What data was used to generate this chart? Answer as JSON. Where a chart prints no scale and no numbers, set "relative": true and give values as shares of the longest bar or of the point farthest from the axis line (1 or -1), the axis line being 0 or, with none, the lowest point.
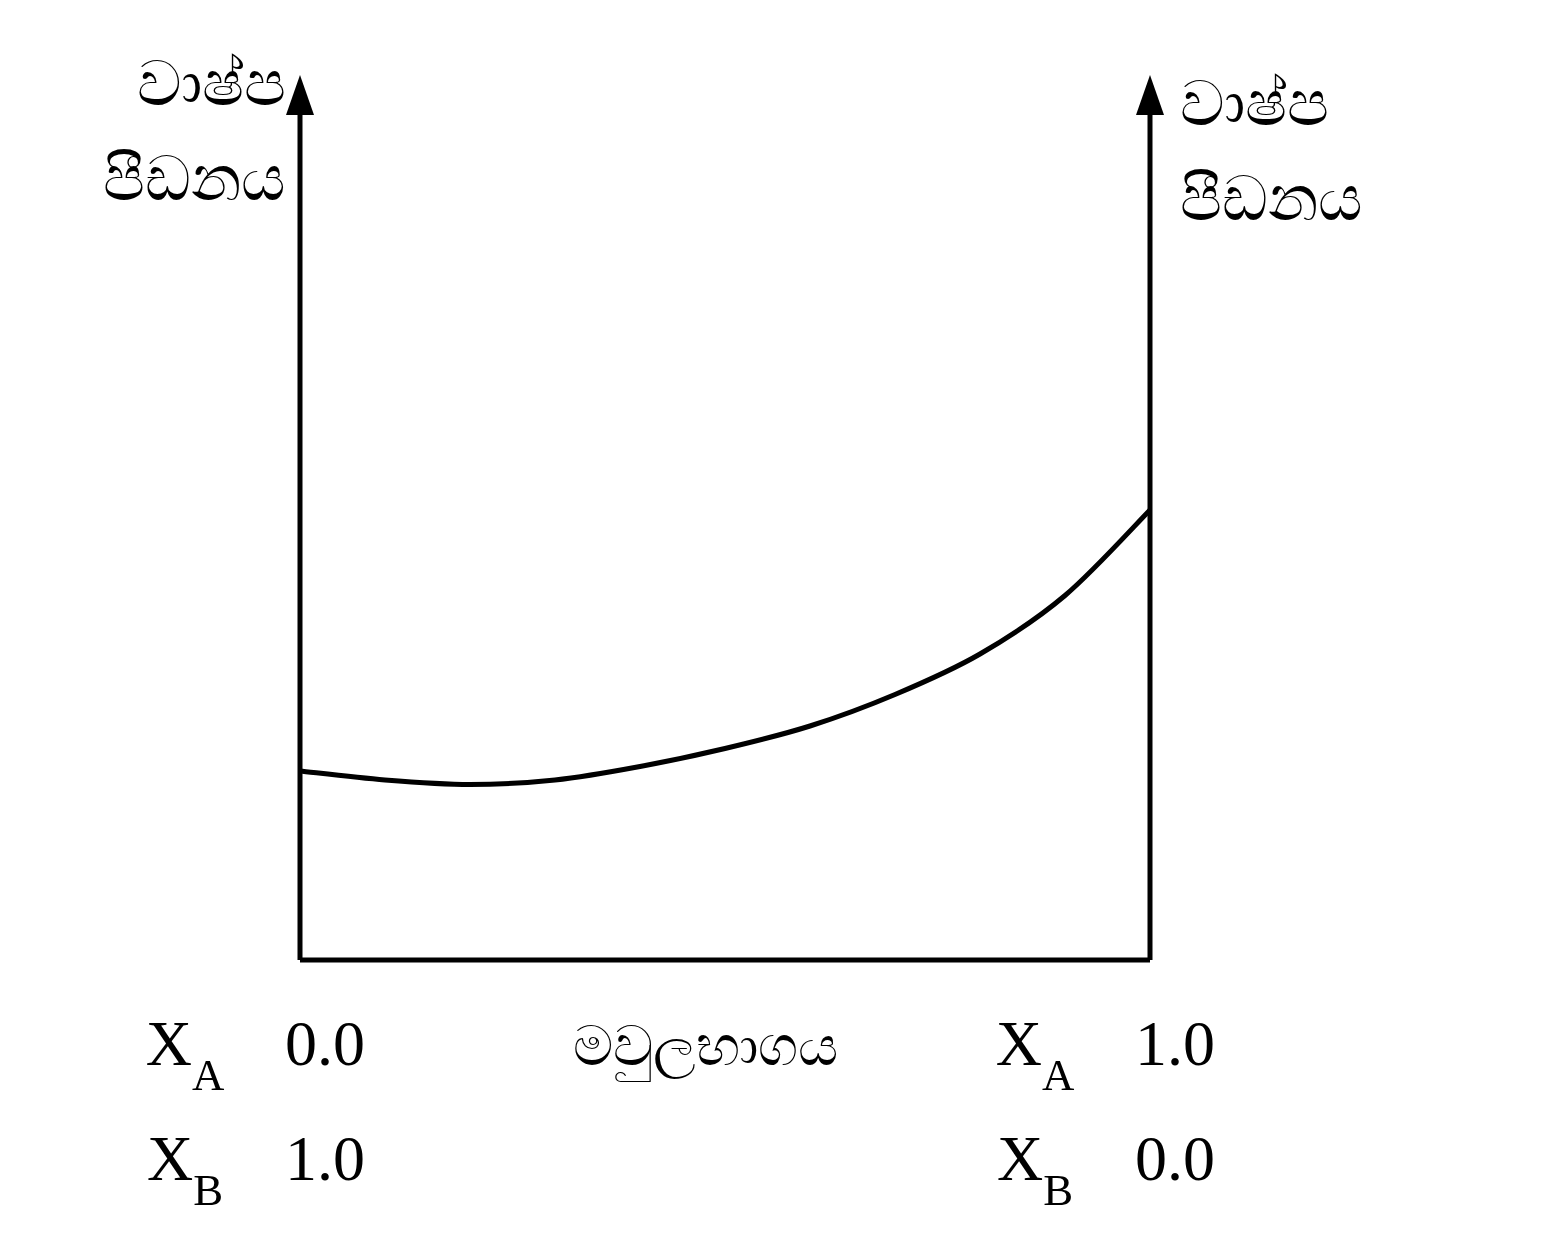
{
  "chart_data": {
    "type": "line",
    "xlabel": "මවුලභාගය",
    "ylabel": "වාෂ්ප පීඩනය",
    "y2label": "වාෂ්ප පීඩනය",
    "relative": true,
    "x": [
      0,
      0.1,
      0.2,
      0.3,
      0.4,
      0.5,
      0.6,
      0.7,
      0.8,
      0.9,
      1.0
    ],
    "xlim": [
      0,
      1
    ],
    "xticks": [
      {
        "value": 0,
        "label": "0.0"
      },
      {
        "value": 1,
        "label": "1.0"
      }
    ],
    "x2lim": [
      1,
      0
    ],
    "x2ticks": [
      {
        "value": 1,
        "label": "1.0"
      },
      {
        "value": 0,
        "label": "0.0"
      }
    ],
    "annotations": [
      "X$_{A}$",
      "X$_{B}$",
      "X$_{A}$",
      "X$_{B}$"
    ],
    "series": [
      {
        "color": "#000000",
        "values": [
          0.42,
          0.4,
          0.39,
          0.4,
          0.43,
          0.47,
          0.52,
          0.59,
          0.68,
          0.81,
          1.0
        ]
      }
    ]
  }
}
